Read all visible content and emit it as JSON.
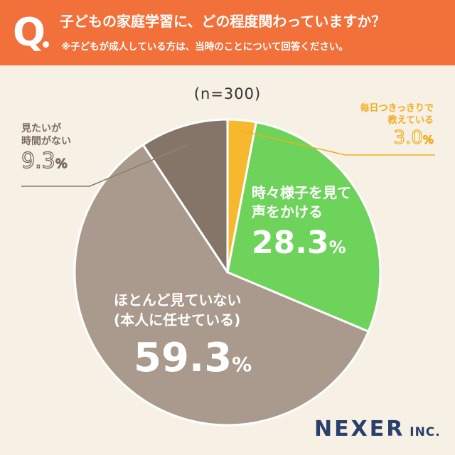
{
  "header": {
    "q_letter": "Q",
    "question": "子どもの家庭学習に、どの程度関わっていますか？",
    "note": "※子どもが成人している方は、当時のことについて回答ください。"
  },
  "chart_data": {
    "type": "pie",
    "sample_size_label": "(n=300)",
    "slices": [
      {
        "label_line1": "毎日つきっきりで",
        "label_line2": "教えている",
        "value_text": "3.0",
        "value": 3.0,
        "color": "#f5b82e"
      },
      {
        "label_line1": "時々様子を見て",
        "label_line2": "声をかける",
        "value_text": "28.3",
        "value": 28.3,
        "color": "#6ed35b"
      },
      {
        "label_line1": "ほとんど見ていない",
        "label_line2": "(本人に任せている)",
        "value_text": "59.3",
        "value": 59.3,
        "color": "#a99a8d"
      },
      {
        "label_line1": "見たいが",
        "label_line2": "時間がない",
        "value_text": "9.3",
        "value": 9.3,
        "color": "#857468"
      }
    ],
    "percent_unit": "%"
  },
  "brand": {
    "name": "NEXER",
    "suffix": " INC."
  }
}
